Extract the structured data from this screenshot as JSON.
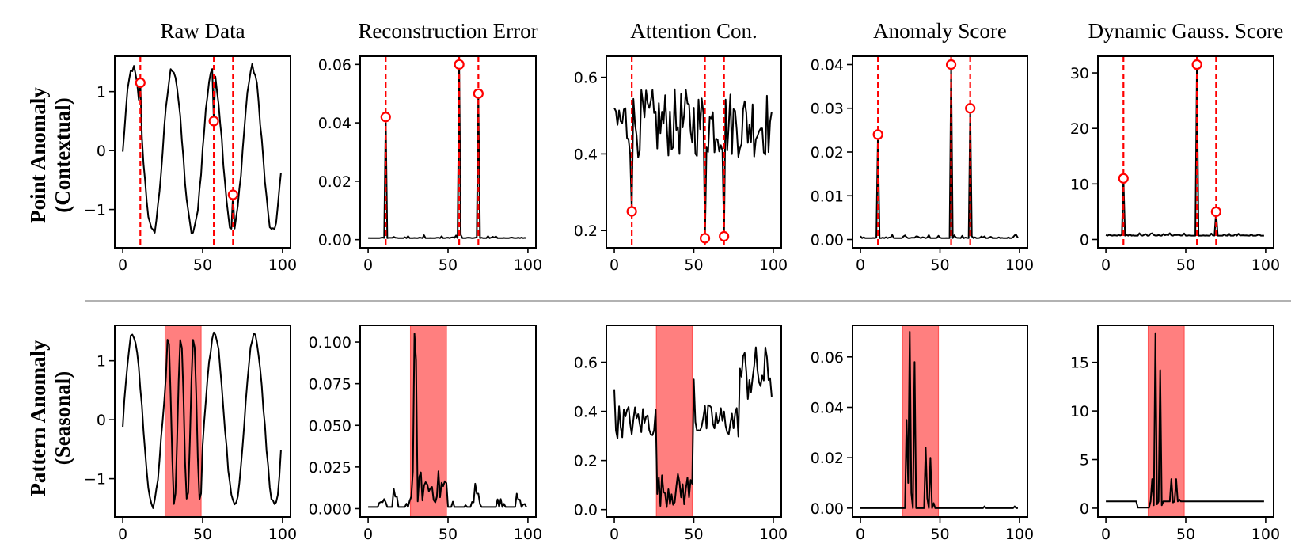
{
  "chart_data": {
    "type": "line",
    "layout": "grid 2 rows x 5 columns",
    "column_titles": [
      "Raw Data",
      "Reconstruction Error",
      "Attention Con.",
      "Anomaly Score",
      "Dynamic Gauss. Score"
    ],
    "rows": [
      {
        "label_line1": "Point Anomaly",
        "label_line2": "(Contextual)",
        "anomaly_type": "points",
        "anomaly_indices": [
          11,
          57,
          69
        ],
        "panels": [
          {
            "title": "Raw Data",
            "xlim": [
              -5,
              105
            ],
            "ylim": [
              -1.65,
              1.6
            ],
            "xticks": [
              0,
              50,
              100
            ],
            "xtick_labels": [
              "0",
              "50",
              "100"
            ],
            "yticks": [
              -1,
              0,
              1
            ],
            "ytick_labels": [
              "−1",
              "0",
              "1"
            ],
            "series": {
              "generator": "sine",
              "period": 25,
              "amplitude": 1.4,
              "phase_shift": 0,
              "noise": 0.08,
              "start": -0.02,
              "end": -0.38
            },
            "anomaly_markers": [
              {
                "x": 11,
                "y": 1.15
              },
              {
                "x": 57,
                "y": 0.5
              },
              {
                "x": 69,
                "y": -0.75
              }
            ]
          },
          {
            "title": "Reconstruction Error",
            "xlim": [
              -5,
              105
            ],
            "ylim": [
              -0.0028,
              0.0628
            ],
            "xticks": [
              0,
              50,
              100
            ],
            "xtick_labels": [
              "0",
              "50",
              "100"
            ],
            "yticks": [
              0.0,
              0.02,
              0.04,
              0.06
            ],
            "ytick_labels": [
              "0.00",
              "0.02",
              "0.04",
              "0.06"
            ],
            "series": {
              "generator": "spikes",
              "baseline": 0.0005,
              "noise": 0.0012,
              "spikes": [
                {
                  "x": 11,
                  "y": 0.042
                },
                {
                  "x": 57,
                  "y": 0.06
                },
                {
                  "x": 69,
                  "y": 0.05
                }
              ]
            },
            "anomaly_markers": [
              {
                "x": 11,
                "y": 0.042
              },
              {
                "x": 57,
                "y": 0.06
              },
              {
                "x": 69,
                "y": 0.05
              }
            ]
          },
          {
            "title": "Attention Con.",
            "xlim": [
              -5,
              105
            ],
            "ylim": [
              0.155,
              0.655
            ],
            "xticks": [
              0,
              50,
              100
            ],
            "xtick_labels": [
              "0",
              "50",
              "100"
            ],
            "yticks": [
              0.2,
              0.4,
              0.6
            ],
            "ytick_labels": [
              "0.2",
              "0.4",
              "0.6"
            ],
            "series": {
              "generator": "noisy",
              "base": 0.48,
              "spread": 0.09,
              "dips": [
                {
                  "x": 11,
                  "y": 0.25
                },
                {
                  "x": 57,
                  "y": 0.18
                },
                {
                  "x": 69,
                  "y": 0.185
                }
              ],
              "start": 0.52,
              "end": 0.51
            },
            "anomaly_markers": [
              {
                "x": 11,
                "y": 0.25
              },
              {
                "x": 57,
                "y": 0.18
              },
              {
                "x": 69,
                "y": 0.185
              }
            ]
          },
          {
            "title": "Anomaly Score",
            "xlim": [
              -5,
              105
            ],
            "ylim": [
              -0.0019,
              0.0419
            ],
            "xticks": [
              0,
              50,
              100
            ],
            "xtick_labels": [
              "0",
              "50",
              "100"
            ],
            "yticks": [
              0.0,
              0.01,
              0.02,
              0.03,
              0.04
            ],
            "ytick_labels": [
              "0.00",
              "0.01",
              "0.02",
              "0.03",
              "0.04"
            ],
            "series": {
              "generator": "spikes",
              "baseline": 0.0003,
              "noise": 0.0008,
              "spikes": [
                {
                  "x": 11,
                  "y": 0.024
                },
                {
                  "x": 57,
                  "y": 0.04
                },
                {
                  "x": 69,
                  "y": 0.03
                }
              ]
            },
            "anomaly_markers": [
              {
                "x": 11,
                "y": 0.024
              },
              {
                "x": 57,
                "y": 0.04
              },
              {
                "x": 69,
                "y": 0.03
              }
            ]
          },
          {
            "title": "Dynamic Gauss. Score",
            "xlim": [
              -5,
              105
            ],
            "ylim": [
              -1.5,
              33.0
            ],
            "xticks": [
              0,
              50,
              100
            ],
            "xtick_labels": [
              "0",
              "50",
              "100"
            ],
            "yticks": [
              0,
              10,
              20,
              30
            ],
            "ytick_labels": [
              "0",
              "10",
              "20",
              "30"
            ],
            "series": {
              "generator": "spikes",
              "baseline": 0.7,
              "noise": 0.5,
              "spikes": [
                {
                  "x": 11,
                  "y": 11.0
                },
                {
                  "x": 57,
                  "y": 31.5
                },
                {
                  "x": 69,
                  "y": 5.0
                }
              ]
            },
            "anomaly_markers": [
              {
                "x": 11,
                "y": 11.0
              },
              {
                "x": 57,
                "y": 31.5
              },
              {
                "x": 69,
                "y": 5.0
              }
            ]
          }
        ]
      },
      {
        "label_line1": "Pattern Anomaly",
        "label_line2": "(Seasonal)",
        "anomaly_type": "span",
        "anomaly_span": [
          26.5,
          49
        ],
        "panels": [
          {
            "title": "Raw Data",
            "xlim": [
              -5,
              105
            ],
            "ylim": [
              -1.65,
              1.6
            ],
            "xticks": [
              0,
              50,
              100
            ],
            "xtick_labels": [
              "0",
              "50",
              "100"
            ],
            "yticks": [
              -1,
              0,
              1
            ],
            "ytick_labels": [
              "−1",
              "0",
              "1"
            ],
            "series": {
              "generator": "sine_burst",
              "period": 25,
              "burst_period": 8,
              "amplitude": 1.45,
              "noise": 0.06,
              "start": -0.12,
              "end": -0.52
            }
          },
          {
            "title": "Reconstruction Error",
            "xlim": [
              -5,
              105
            ],
            "ylim": [
              -0.005,
              0.11
            ],
            "xticks": [
              0,
              50,
              100
            ],
            "xtick_labels": [
              "0",
              "50",
              "100"
            ],
            "yticks": [
              0.0,
              0.025,
              0.05,
              0.075,
              0.1
            ],
            "ytick_labels": [
              "0.000",
              "0.025",
              "0.050",
              "0.075",
              "0.100"
            ],
            "series": {
              "generator": "span_noise",
              "baseline": 0.001,
              "noise": 0.005,
              "peak": {
                "x": 29,
                "y": 0.105
              },
              "span_level": 0.013,
              "bumps": [
                {
                  "x": 16,
                  "y": 0.012
                },
                {
                  "x": 67,
                  "y": 0.015
                },
                {
                  "x": 93,
                  "y": 0.009
                }
              ]
            }
          },
          {
            "title": "Attention Con.",
            "xlim": [
              -5,
              105
            ],
            "ylim": [
              -0.03,
              0.75
            ],
            "xticks": [
              0,
              50,
              100
            ],
            "xtick_labels": [
              "0",
              "50",
              "100"
            ],
            "yticks": [
              0.0,
              0.2,
              0.4,
              0.6
            ],
            "ytick_labels": [
              "0.0",
              "0.2",
              "0.4",
              "0.6"
            ],
            "series": {
              "generator": "span_dip",
              "base": 0.36,
              "spread": 0.07,
              "span_level": 0.08,
              "late_base": 0.55,
              "late_start": 79,
              "peak_after": {
                "x": 50,
                "y": 0.53
              },
              "start": 0.49,
              "end": 0.46
            }
          },
          {
            "title": "Anomaly Score",
            "xlim": [
              -5,
              105
            ],
            "ylim": [
              -0.0035,
              0.0725
            ],
            "xticks": [
              0,
              50,
              100
            ],
            "xtick_labels": [
              "0",
              "50",
              "100"
            ],
            "yticks": [
              0.0,
              0.02,
              0.04,
              0.06
            ],
            "ytick_labels": [
              "0.00",
              "0.02",
              "0.04",
              "0.06"
            ],
            "series": {
              "generator": "span_peaks",
              "baseline": 0.0,
              "peaks": [
                {
                  "x": 29,
                  "y": 0.035
                },
                {
                  "x": 30,
                  "y": 0.01
                },
                {
                  "x": 31,
                  "y": 0.07
                },
                {
                  "x": 32,
                  "y": 0.006
                },
                {
                  "x": 34,
                  "y": 0.058
                },
                {
                  "x": 35,
                  "y": 0.0
                },
                {
                  "x": 41,
                  "y": 0.024
                },
                {
                  "x": 42,
                  "y": 0.004
                },
                {
                  "x": 44,
                  "y": 0.02
                },
                {
                  "x": 46,
                  "y": 0.002
                }
              ],
              "small_bumps": [
                {
                  "x": 78,
                  "y": 0.0007
                },
                {
                  "x": 97,
                  "y": 0.0007
                }
              ]
            }
          },
          {
            "title": "Dynamic Gauss. Score",
            "xlim": [
              -5,
              105
            ],
            "ylim": [
              -0.9,
              18.8
            ],
            "xticks": [
              0,
              50,
              100
            ],
            "xtick_labels": [
              "0",
              "50",
              "100"
            ],
            "yticks": [
              0,
              5,
              10,
              15
            ],
            "ytick_labels": [
              "0",
              "5",
              "10",
              "15"
            ],
            "series": {
              "generator": "span_peaks",
              "baseline": 0.7,
              "pre_dip": {
                "from": 20,
                "to": 27,
                "level": 0.05
              },
              "peaks": [
                {
                  "x": 29,
                  "y": 3.0
                },
                {
                  "x": 30,
                  "y": 0.3
                },
                {
                  "x": 31,
                  "y": 18.0
                },
                {
                  "x": 32,
                  "y": 0.4
                },
                {
                  "x": 34,
                  "y": 14.2
                },
                {
                  "x": 35,
                  "y": 0.3
                },
                {
                  "x": 41,
                  "y": 3.0
                },
                {
                  "x": 42,
                  "y": 0.6
                },
                {
                  "x": 44,
                  "y": 3.0
                },
                {
                  "x": 46,
                  "y": 0.9
                }
              ]
            }
          }
        ]
      }
    ],
    "colors": {
      "line": "#000000",
      "anomaly": "#ff0000",
      "span_fill": "#ff7f7f",
      "separator": "#999999"
    }
  }
}
